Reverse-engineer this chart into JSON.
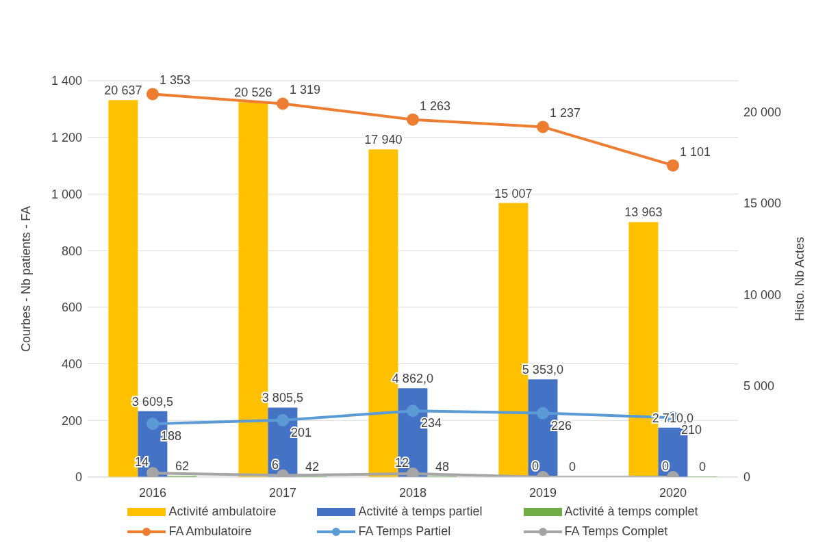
{
  "chart_data": {
    "type": "bar",
    "categories": [
      "2016",
      "2017",
      "2018",
      "2019",
      "2020"
    ],
    "ylabel": "Courbes - Nb patients - FA",
    "y2label": "Histo. Nb Actes",
    "ylim": [
      0,
      1400
    ],
    "yticks": [
      0,
      {
        "value": 200,
        "label": "200"
      },
      {
        "value": 400,
        "label": "400"
      },
      {
        "value": 600,
        "label": "600"
      },
      {
        "value": 800,
        "label": "800"
      },
      {
        "value": 1000,
        "label": "1 000"
      },
      {
        "value": 1200,
        "label": "1 200"
      },
      {
        "value": 1400,
        "label": "1 400"
      }
    ],
    "y2lim": [
      0,
      21700
    ],
    "y2ticks": [
      0,
      {
        "value": 5000,
        "label": "5 000"
      },
      {
        "value": 10000,
        "label": "10 000"
      },
      {
        "value": 15000,
        "label": "15 000"
      },
      {
        "value": 20000,
        "label": "20 000"
      }
    ],
    "grid": "y",
    "legend": "bottom",
    "marker": "circle",
    "line_style": "solid",
    "series": [
      {
        "name": "Activité ambulatoire",
        "axis": "y2",
        "color": "#ffc000",
        "values": [
          20637,
          20526,
          17940,
          15007,
          13963
        ],
        "value_labels": [
          "20 637",
          "20 526",
          "17 940",
          "15 007",
          "13 963"
        ]
      },
      {
        "name": "Activité à temps partiel",
        "axis": "y2",
        "color": "#4472c4",
        "values": [
          3609.5,
          3805.5,
          4862,
          5353,
          2710
        ],
        "value_labels": [
          "3 609,5",
          "3 805,5",
          "4 862,0",
          "5 353,0",
          "2 710,0"
        ]
      },
      {
        "name": "Activité à temps complet",
        "axis": "y2",
        "color": "#70ad47",
        "values": [
          62,
          42,
          48,
          0,
          0
        ],
        "value_labels": [
          "62",
          "42",
          "48",
          "0",
          "0"
        ]
      },
      {
        "name": "FA Ambulatoire",
        "type": "line",
        "color": "#ed7d31",
        "values": [
          1353,
          1319,
          1263,
          1237,
          1101
        ],
        "value_labels": [
          "1 353",
          "1 319",
          "1 263",
          "1 237",
          "1 101"
        ]
      },
      {
        "name": "FA Temps Partiel",
        "type": "line",
        "color": "#5b9bd5",
        "values": [
          188,
          201,
          234,
          226,
          210
        ],
        "value_labels": [
          "188",
          "201",
          "234",
          "226",
          "210"
        ]
      },
      {
        "name": "FA Temps Complet",
        "type": "line",
        "color": "#a5a5a5",
        "values": [
          14,
          6,
          12,
          0,
          0
        ],
        "value_labels": [
          "14",
          "6",
          "12",
          "0",
          "0"
        ]
      }
    ]
  }
}
